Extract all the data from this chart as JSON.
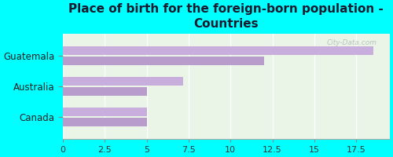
{
  "title": "Place of birth for the foreign-born population -\nCountries",
  "categories": [
    "Guatemala",
    "Australia",
    "Canada"
  ],
  "values_upper": [
    18.5,
    7.2,
    5.0
  ],
  "values_lower": [
    12.0,
    5.0,
    5.0
  ],
  "bar_color_upper": "#c8aedd",
  "bar_color_lower": "#b89ccc",
  "background_color": "#00ffff",
  "plot_bg_color": "#eaf5e8",
  "xlim": [
    0,
    19.5
  ],
  "xticks": [
    0,
    2.5,
    5,
    7.5,
    10,
    12.5,
    15,
    17.5
  ],
  "bar_height": 0.28,
  "bar_gap": 0.05,
  "title_fontsize": 11,
  "label_fontsize": 8.5,
  "tick_fontsize": 8,
  "watermark": "City-Data.com",
  "title_color": "#1a1a2e"
}
